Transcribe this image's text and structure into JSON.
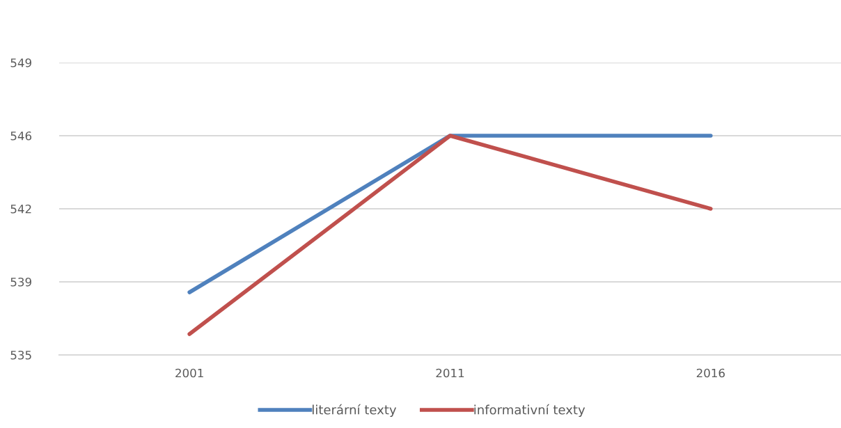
{
  "chart_data": {
    "type": "line",
    "categories": [
      "2001",
      "2011",
      "2016"
    ],
    "series": [
      {
        "name": "literární texty",
        "color": "#4f81bd",
        "values": [
          538.0,
          545.5,
          545.5
        ]
      },
      {
        "name": "informativní texty",
        "color": "#c0504d",
        "values": [
          536.0,
          545.5,
          542.0
        ]
      }
    ],
    "ylim": [
      535,
      549
    ],
    "yticks": [
      535,
      {
        "value": 538.5,
        "label": "539"
      },
      542,
      {
        "value": 545.5,
        "label": "546"
      },
      549
    ],
    "grid": "y",
    "legend": "bottom",
    "marker": "none",
    "line_style": "solid"
  }
}
